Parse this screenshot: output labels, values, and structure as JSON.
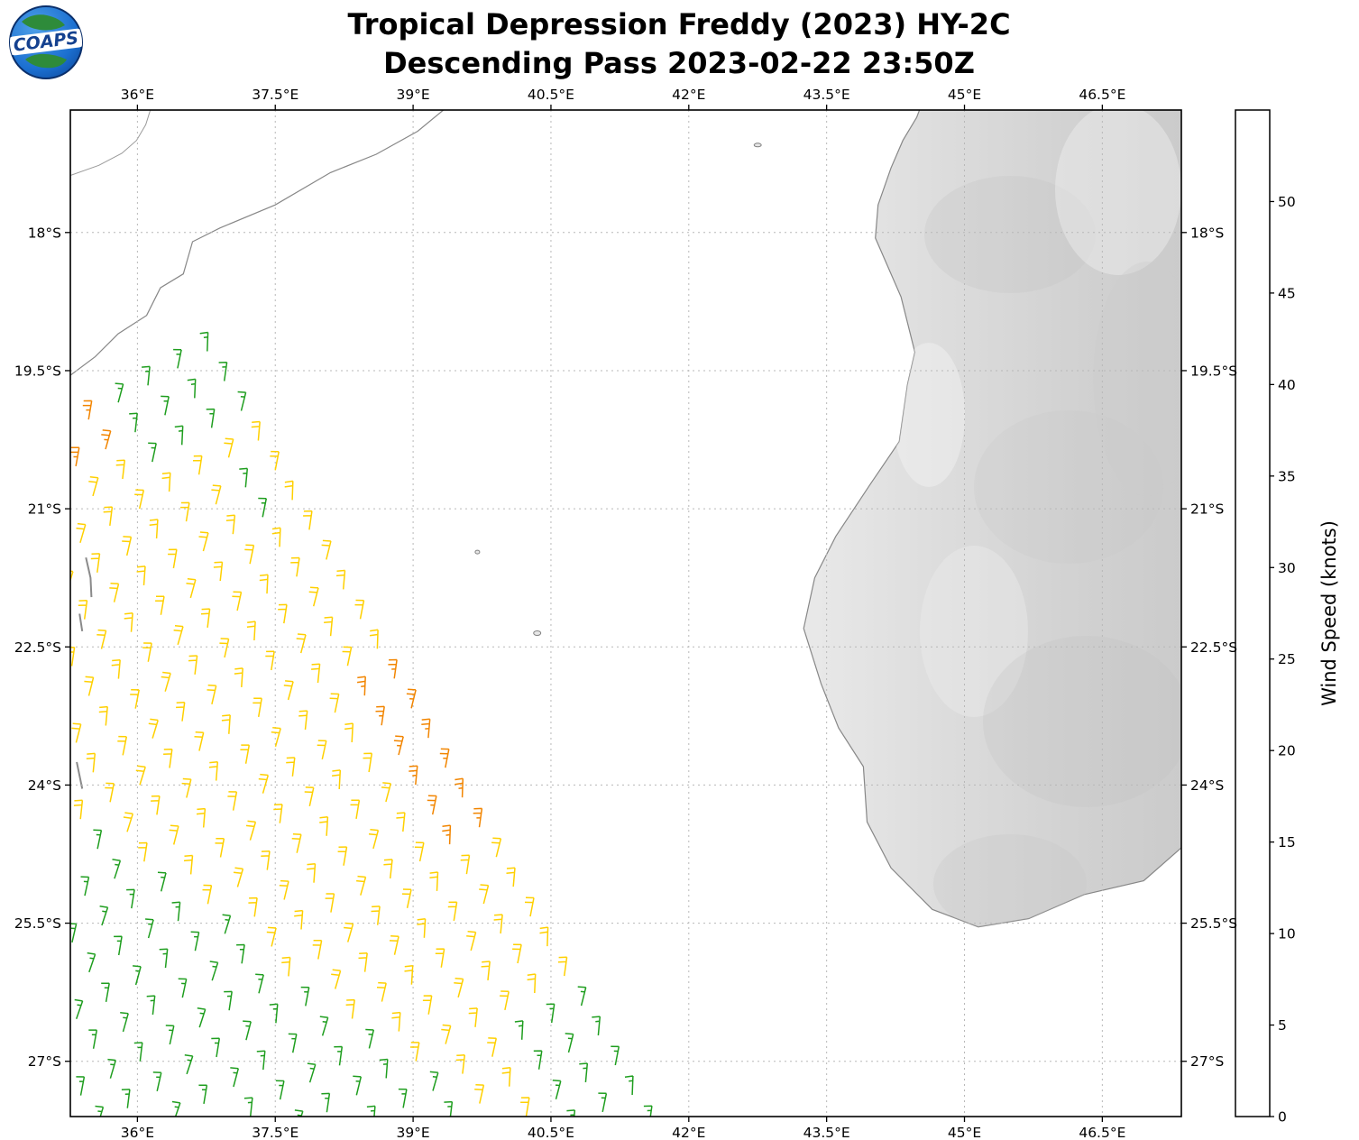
{
  "logo": {
    "text": "COAPS"
  },
  "chart_data": {
    "type": "scatter",
    "variant": "satellite-wind-barb-map",
    "title": "Tropical Depression Freddy (2023) HY-2C",
    "subtitle": "Descending Pass 2023-02-22 23:50Z",
    "lon_min": 35.27,
    "lon_max": 47.36,
    "lat_s_min": 16.67,
    "lat_s_max": 27.6,
    "x_ticks": {
      "values": [
        36,
        37.5,
        39,
        40.5,
        42,
        43.5,
        45,
        46.5
      ],
      "labels": [
        "36°E",
        "37.5°E",
        "39°E",
        "40.5°E",
        "42°E",
        "43.5°E",
        "45°E",
        "46.5°E"
      ]
    },
    "y_ticks": {
      "values": [
        18,
        19.5,
        21,
        22.5,
        24,
        25.5,
        27
      ],
      "labels": [
        "18°S",
        "19.5°S",
        "21°S",
        "22.5°S",
        "24°S",
        "25.5°S",
        "27°S"
      ]
    },
    "grid_style": "dashed",
    "colorbar": {
      "label": "Wind Speed (knots)",
      "tick_labels": [
        "0",
        "5",
        "10",
        "15",
        "20",
        "25",
        "30",
        "35",
        "40",
        "45",
        "50"
      ],
      "segments": [
        {
          "min": 0,
          "max": 5,
          "color": "#7f7f7f"
        },
        {
          "min": 5,
          "max": 10,
          "color": "#2fd0ff"
        },
        {
          "min": 10,
          "max": 15,
          "color": "#1a56e8"
        },
        {
          "min": 15,
          "max": 20,
          "color": "#1f9e1f"
        },
        {
          "min": 20,
          "max": 25,
          "color": "#ffd000"
        },
        {
          "min": 25,
          "max": 30,
          "color": "#f28500"
        },
        {
          "min": 30,
          "max": 35,
          "color": "#ee1111"
        },
        {
          "min": 35,
          "max": 40,
          "color": "#8a4a2e"
        },
        {
          "min": 40,
          "max": 45,
          "color": "#ff00ff"
        },
        {
          "min": 45,
          "max": 50,
          "color": "#8b00d6"
        },
        {
          "min": 50,
          "max": 55,
          "color": "#22004c"
        }
      ]
    },
    "wind": {
      "units": "knots",
      "barb_full_kt": 10,
      "barb_half_kt": 5,
      "grid": {
        "origin": [
          36.76,
          -19.29
        ],
        "u_step": [
          0.185,
          -0.323
        ],
        "v_step": [
          -0.323,
          -0.185
        ],
        "n_u": 27,
        "n_v": 17
      },
      "default_speed_kt": 22.5,
      "regions": [
        {
          "u": [
            0,
            2
          ],
          "v": [
            0,
            3
          ],
          "speed_kt": 17.5
        },
        {
          "u": [
            4,
            5
          ],
          "v": [
            1,
            1
          ],
          "speed_kt": 17.5
        },
        {
          "u": [
            0,
            1
          ],
          "v": [
            4,
            6
          ],
          "speed_kt": 27.5
        },
        {
          "u": [
            11,
            16
          ],
          "v": [
            0,
            1
          ],
          "speed_kt": 27.5
        },
        {
          "u": [
            22,
            26
          ],
          "v": [
            0,
            2
          ],
          "speed_kt": 17.5
        }
      ],
      "sw_linear_rule": {
        "u_coef": 17.1,
        "v_coef": 38,
        "threshold": 560,
        "speed_kt": 15
      },
      "speed_colors": [
        {
          "max_kt": 20,
          "color": "#1f9e1f"
        },
        {
          "max_kt": 25,
          "color": "#ffd000"
        },
        {
          "max_kt": 999,
          "color": "#f28500"
        }
      ]
    },
    "coastlines": {
      "madagascar": [
        [
          44.51,
          -16.67
        ],
        [
          44.48,
          -16.75
        ],
        [
          44.33,
          -17.0
        ],
        [
          44.2,
          -17.3
        ],
        [
          44.06,
          -17.7
        ],
        [
          44.03,
          -18.06
        ],
        [
          44.31,
          -18.7
        ],
        [
          44.46,
          -19.3
        ],
        [
          44.38,
          -19.65
        ],
        [
          44.29,
          -20.27
        ],
        [
          43.97,
          -20.74
        ],
        [
          43.6,
          -21.3
        ],
        [
          43.37,
          -21.75
        ],
        [
          43.25,
          -22.3
        ],
        [
          43.44,
          -22.9
        ],
        [
          43.63,
          -23.38
        ],
        [
          43.9,
          -23.8
        ],
        [
          43.94,
          -24.4
        ],
        [
          44.2,
          -24.9
        ],
        [
          44.65,
          -25.35
        ],
        [
          45.15,
          -25.54
        ],
        [
          45.7,
          -25.45
        ],
        [
          46.3,
          -25.19
        ],
        [
          46.95,
          -25.04
        ],
        [
          47.36,
          -24.68
        ],
        [
          47.36,
          -16.67
        ]
      ],
      "mozambique": [
        [
          39.33,
          -16.67
        ],
        [
          39.05,
          -16.9
        ],
        [
          38.6,
          -17.15
        ],
        [
          38.1,
          -17.35
        ],
        [
          37.5,
          -17.7
        ],
        [
          36.9,
          -17.95
        ],
        [
          36.6,
          -18.1
        ],
        [
          36.5,
          -18.45
        ],
        [
          36.25,
          -18.6
        ],
        [
          36.1,
          -18.9
        ],
        [
          35.79,
          -19.1
        ],
        [
          35.54,
          -19.35
        ],
        [
          35.27,
          -19.55
        ],
        [
          35.27,
          -16.67
        ]
      ],
      "inland_line": [
        [
          35.27,
          -17.38
        ],
        [
          35.58,
          -17.27
        ],
        [
          35.83,
          -17.14
        ],
        [
          35.99,
          -17.0
        ],
        [
          36.09,
          -16.83
        ],
        [
          36.14,
          -16.67
        ]
      ],
      "coastal_slivers": [
        [
          [
            35.44,
            -21.53
          ],
          [
            35.49,
            -21.75
          ],
          [
            35.5,
            -21.96
          ]
        ],
        [
          [
            35.37,
            -22.14
          ],
          [
            35.4,
            -22.33
          ]
        ],
        [
          [
            35.34,
            -23.75
          ],
          [
            35.4,
            -24.04
          ]
        ]
      ],
      "islets": [
        {
          "lon": 42.75,
          "lat": -17.05,
          "rx": 4,
          "ry": 2
        },
        {
          "lon": 39.7,
          "lat": -21.47,
          "rx": 2.5,
          "ry": 2
        },
        {
          "lon": 40.35,
          "lat": -22.35,
          "rx": 4,
          "ry": 2.5
        }
      ]
    }
  }
}
